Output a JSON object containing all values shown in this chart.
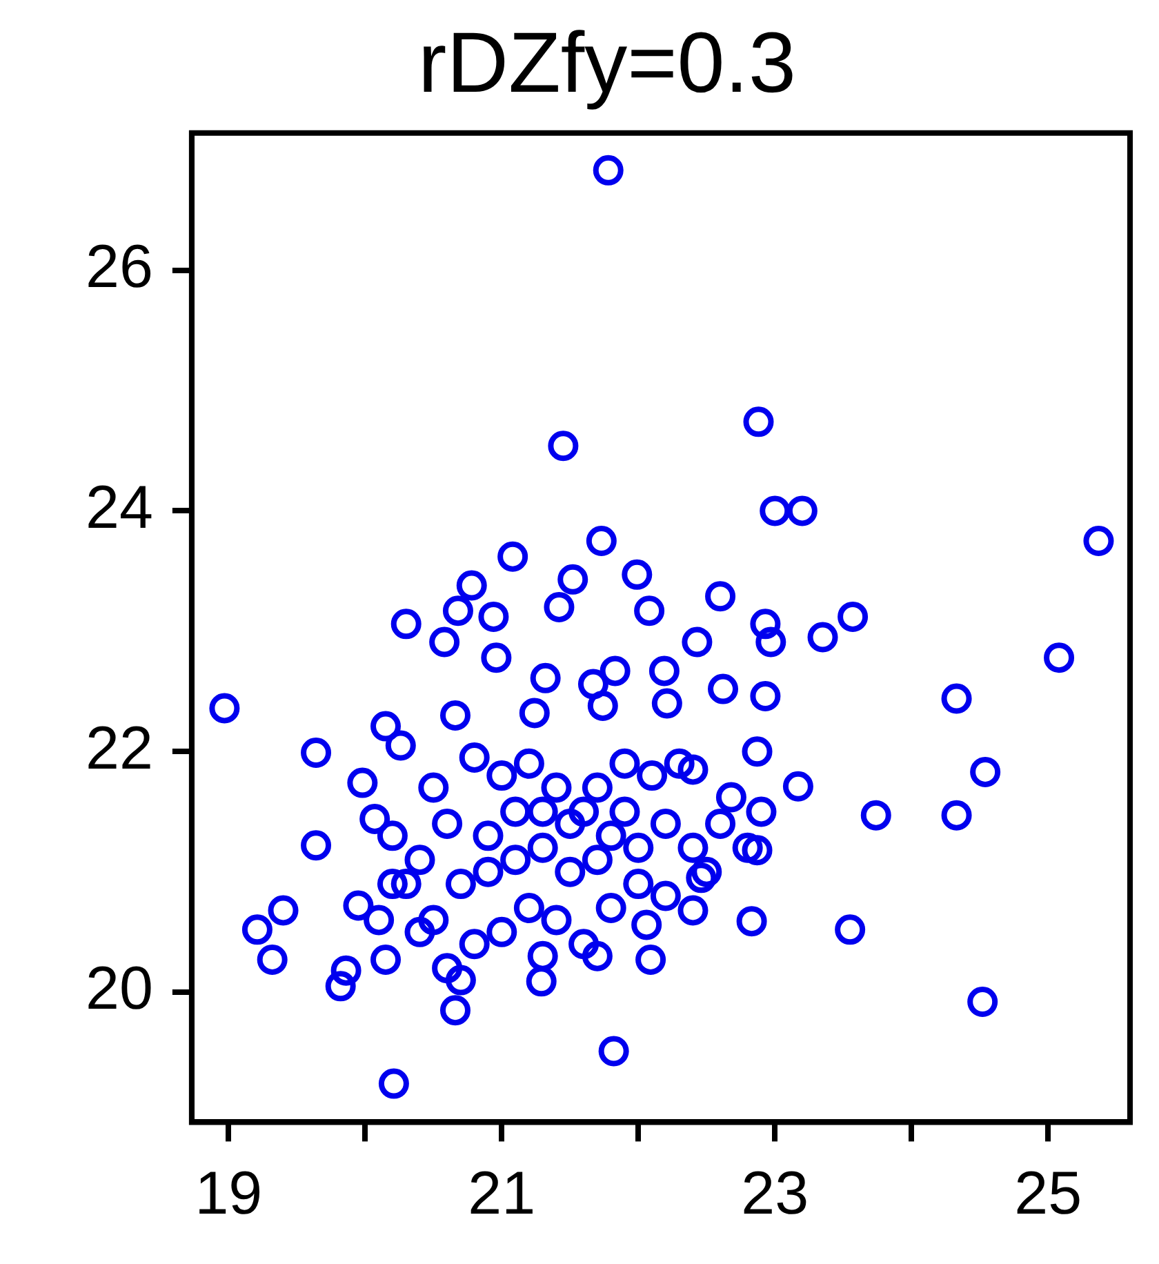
{
  "chart_data": {
    "type": "scatter",
    "title": "rDZfy=0.3",
    "grid": false,
    "legend": false,
    "marker": "circle",
    "xlim": [
      18.73,
      25.6
    ],
    "ylim": [
      18.92,
      27.14
    ],
    "xticks": [
      19,
      {
        "value": 20,
        "label": null
      },
      21,
      {
        "value": 22,
        "label": null
      },
      23,
      {
        "value": 24,
        "label": null
      },
      25
    ],
    "yticks": [
      20,
      22,
      24,
      26
    ],
    "series": [
      {
        "color": "#0000ee",
        "x": [
          21.78,
          22.88,
          21.45,
          23.0,
          23.2,
          25.37,
          21.73,
          21.08,
          23.57,
          21.99,
          22.6,
          20.78,
          21.52,
          20.3,
          20.68,
          20.94,
          22.93,
          23.35,
          22.97,
          25.08,
          20.58,
          22.43,
          22.08,
          21.42,
          20.96,
          24.33,
          18.97,
          22.62,
          22.93,
          24.54,
          19.64,
          20.15,
          20.26,
          20.66,
          22.87,
          23.17,
          23.74,
          24.33,
          23.55,
          24.52,
          22.83,
          21.82,
          20.21,
          20.66,
          19.21,
          19.32,
          19.4,
          19.82,
          19.86,
          19.64,
          19.98,
          20.07,
          19.95,
          20.15,
          21.29,
          22.09,
          22.4,
          22.06,
          22.87,
          22.68,
          22.46,
          22.19,
          21.83,
          21.67,
          21.32,
          22.21,
          21.24,
          21.74,
          22.4,
          20.6,
          20.8,
          21.0,
          21.2,
          21.4,
          21.6,
          21.8,
          22.0,
          21.1,
          21.3,
          21.5,
          21.7,
          20.9,
          20.7,
          20.5,
          20.8,
          21.0,
          21.2,
          21.4,
          21.6,
          21.8,
          22.0,
          22.2,
          22.4,
          22.3,
          22.1,
          21.9,
          20.4,
          20.3,
          20.6,
          21.3,
          21.7,
          20.2,
          20.5,
          21.5,
          21.1,
          20.9,
          21.3,
          21.7,
          22.5,
          22.6,
          22.8,
          22.9,
          20.4,
          20.7,
          21.9,
          22.2,
          20.1,
          20.2
        ],
        "values": [
          26.83,
          24.74,
          24.54,
          24.0,
          24.0,
          23.75,
          23.75,
          23.62,
          23.12,
          23.47,
          23.29,
          23.38,
          23.43,
          23.06,
          23.17,
          23.12,
          23.06,
          22.95,
          22.91,
          22.78,
          22.91,
          22.91,
          23.17,
          23.2,
          22.78,
          22.44,
          22.36,
          22.52,
          22.46,
          21.83,
          21.99,
          22.21,
          22.05,
          22.3,
          22.0,
          21.71,
          21.47,
          21.47,
          20.52,
          19.92,
          20.59,
          19.51,
          19.24,
          19.85,
          20.52,
          20.27,
          20.68,
          20.05,
          20.18,
          21.22,
          21.74,
          21.44,
          20.72,
          20.27,
          20.09,
          20.27,
          20.68,
          20.56,
          21.18,
          21.62,
          20.95,
          22.67,
          22.67,
          22.56,
          22.61,
          22.4,
          22.32,
          22.38,
          21.85,
          21.4,
          21.95,
          21.8,
          21.9,
          21.7,
          21.5,
          21.3,
          21.2,
          21.1,
          21.2,
          21.0,
          21.1,
          21.0,
          20.9,
          20.6,
          20.4,
          20.5,
          20.7,
          20.6,
          20.4,
          20.7,
          20.9,
          21.4,
          21.2,
          21.9,
          21.8,
          21.9,
          21.1,
          20.9,
          20.2,
          20.3,
          20.3,
          21.3,
          21.7,
          21.4,
          21.5,
          21.3,
          21.5,
          21.7,
          21.0,
          21.4,
          21.2,
          21.5,
          20.5,
          20.1,
          21.5,
          20.8,
          20.6,
          20.9
        ]
      }
    ]
  }
}
